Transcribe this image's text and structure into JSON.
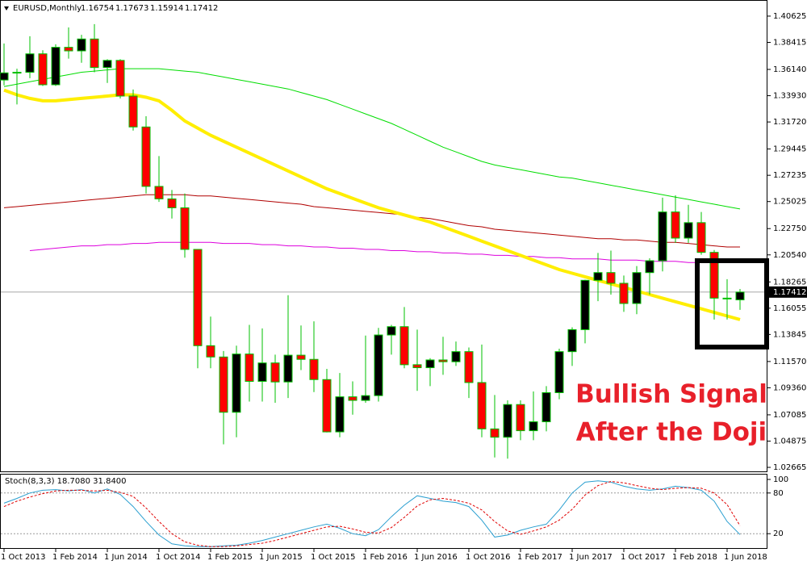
{
  "chart_data": [
    {
      "type": "candlestick",
      "title": "EURUSD,Monthly",
      "ohlc": [
        1.16754,
        1.17673,
        1.15914,
        1.17412
      ],
      "categories": [
        "1 Oct 2013",
        null,
        null,
        null,
        "1 Feb 2014",
        null,
        null,
        null,
        "1 Jun 2014",
        null,
        null,
        null,
        "1 Oct 2014",
        null,
        null,
        null,
        "1 Feb 2015",
        null,
        null,
        null,
        "1 Jun 2015",
        null,
        null,
        null,
        "1 Oct 2015",
        null,
        null,
        null,
        "1 Feb 2016",
        null,
        null,
        null,
        "1 Jun 2016",
        null,
        null,
        null,
        "1 Oct 2016",
        null,
        null,
        null,
        "1 Feb 2017",
        null,
        null,
        null,
        "1 Jun 2017",
        null,
        null,
        null,
        "1 Oct 2017",
        null,
        null,
        null,
        "1 Feb 2018",
        null,
        null,
        null,
        "1 Jun 2018",
        null
      ],
      "open": [
        1.3525,
        1.3585,
        1.359,
        1.3745,
        1.3485,
        1.38,
        1.377,
        1.387,
        1.363,
        1.369,
        1.339,
        1.313,
        1.263,
        1.2525,
        1.245,
        1.21,
        1.129,
        1.1195,
        1.073,
        1.122,
        1.099,
        1.1145,
        1.0985,
        1.121,
        1.1175,
        1.1005,
        1.0565,
        1.086,
        1.083,
        1.087,
        1.138,
        1.145,
        1.113,
        1.1105,
        1.117,
        1.1155,
        1.124,
        1.098,
        1.059,
        1.052,
        1.0795,
        1.0575,
        1.065,
        1.0895,
        1.124,
        1.1425,
        1.184,
        1.1905,
        1.1815,
        1.1645,
        1.1905,
        1.2005,
        1.2415,
        1.2195,
        1.2325,
        1.2075,
        1.169,
        1.16754
      ],
      "high": [
        1.3832,
        1.362,
        1.3893,
        1.3775,
        1.3825,
        1.3967,
        1.3905,
        1.3995,
        1.37,
        1.37,
        1.3445,
        1.322,
        1.2885,
        1.26,
        1.257,
        1.21,
        1.1535,
        1.1245,
        1.129,
        1.1465,
        1.1435,
        1.1215,
        1.1715,
        1.146,
        1.1495,
        1.1095,
        1.106,
        1.099,
        1.1375,
        1.144,
        1.1465,
        1.1615,
        1.1425,
        1.1185,
        1.1365,
        1.1325,
        1.1275,
        1.13,
        1.0875,
        1.083,
        1.083,
        1.0905,
        1.095,
        1.1265,
        1.1445,
        1.1845,
        1.207,
        1.209,
        1.188,
        1.196,
        1.2025,
        1.2535,
        1.2555,
        1.2475,
        1.2415,
        1.2095,
        1.185,
        1.17673
      ],
      "low": [
        1.348,
        1.332,
        1.354,
        1.3475,
        1.3475,
        1.3705,
        1.367,
        1.359,
        1.35,
        1.337,
        1.31,
        1.257,
        1.25,
        1.236,
        1.203,
        1.11,
        1.11,
        1.046,
        1.052,
        1.082,
        1.082,
        1.081,
        1.085,
        1.1085,
        1.09,
        1.056,
        1.052,
        1.071,
        1.081,
        1.082,
        1.1215,
        1.11,
        1.091,
        1.095,
        1.1045,
        1.112,
        1.085,
        1.052,
        1.035,
        1.034,
        1.0495,
        1.0495,
        1.057,
        1.084,
        1.112,
        1.131,
        1.1665,
        1.172,
        1.1575,
        1.1555,
        1.172,
        1.1915,
        1.2155,
        1.2155,
        1.2055,
        1.151,
        1.151,
        1.15914
      ],
      "close": [
        1.3585,
        1.359,
        1.3745,
        1.3485,
        1.38,
        1.377,
        1.387,
        1.363,
        1.369,
        1.339,
        1.313,
        1.263,
        1.2525,
        1.245,
        1.21,
        1.129,
        1.1195,
        1.073,
        1.122,
        1.099,
        1.1145,
        1.0985,
        1.121,
        1.1175,
        1.1005,
        1.0565,
        1.086,
        1.083,
        1.087,
        1.138,
        1.145,
        1.113,
        1.1105,
        1.117,
        1.1155,
        1.124,
        1.098,
        1.059,
        1.052,
        1.0795,
        1.0575,
        1.065,
        1.0895,
        1.124,
        1.1425,
        1.184,
        1.1905,
        1.1815,
        1.1645,
        1.1905,
        1.2005,
        1.2415,
        1.2195,
        1.2325,
        1.2075,
        1.169,
        1.1685,
        1.17412
      ],
      "up_color": "#000000",
      "down_color": "#ff0000",
      "wick_color": "#00c000",
      "ylim": [
        1.0226,
        1.4198
      ],
      "yticks": [
        1.40625,
        1.38415,
        {
          "value": 1.3614,
          "label": "1.36140"
        },
        {
          "value": 1.3393,
          "label": "1.33930"
        },
        {
          "value": 1.3172,
          "label": "1.31720"
        },
        1.29445,
        1.27235,
        1.25025,
        {
          "value": 1.2275,
          "label": "1.22750"
        },
        {
          "value": 1.2054,
          "label": "1.20540"
        },
        1.18265,
        1.16055,
        1.13845,
        {
          "value": 1.1157,
          "label": "1.11570"
        },
        {
          "value": 1.0936,
          "label": "1.09360"
        },
        1.07085,
        1.04875,
        1.02665
      ],
      "overlays": [
        {
          "color": "#00dd00",
          "values": [
            1.347,
            1.349,
            1.351,
            1.353,
            1.355,
            1.357,
            1.359,
            1.36,
            1.361,
            1.362,
            1.362,
            1.362,
            1.362,
            1.361,
            1.36,
            1.359,
            1.357,
            1.355,
            1.353,
            1.351,
            1.349,
            1.347,
            1.345,
            1.342,
            1.339,
            1.336,
            1.332,
            1.328,
            1.324,
            1.32,
            1.316,
            1.311,
            1.306,
            1.301,
            1.296,
            1.292,
            1.288,
            1.284,
            1.281,
            1.279,
            1.277,
            1.275,
            1.273,
            1.271,
            1.27,
            1.268,
            1.266,
            1.264,
            1.262,
            1.26,
            1.258,
            1.256,
            1.254,
            1.252,
            1.25,
            1.248,
            1.246,
            1.244
          ]
        },
        {
          "color": "#b00000",
          "values": [
            1.245,
            1.246,
            1.247,
            1.248,
            1.249,
            1.25,
            1.251,
            1.252,
            1.253,
            1.254,
            1.255,
            1.256,
            1.256,
            1.256,
            1.256,
            1.255,
            1.255,
            1.254,
            1.253,
            1.252,
            1.251,
            1.25,
            1.249,
            1.248,
            1.246,
            1.245,
            1.244,
            1.243,
            1.242,
            1.241,
            1.24,
            1.239,
            1.237,
            1.236,
            1.234,
            1.232,
            1.23,
            1.229,
            1.227,
            1.226,
            1.225,
            1.224,
            1.223,
            1.222,
            1.221,
            1.22,
            1.219,
            1.219,
            1.218,
            1.218,
            1.217,
            1.216,
            1.216,
            1.215,
            1.214,
            1.213,
            1.212,
            1.212
          ]
        },
        {
          "color": "#dd00dd",
          "values": [
            null,
            null,
            1.209,
            1.21,
            1.211,
            1.212,
            1.213,
            1.213,
            1.214,
            1.214,
            1.215,
            1.215,
            1.216,
            1.216,
            1.216,
            1.216,
            1.216,
            1.215,
            1.215,
            1.215,
            1.214,
            1.214,
            1.213,
            1.213,
            1.212,
            1.212,
            1.211,
            1.211,
            1.21,
            1.21,
            1.209,
            1.209,
            1.208,
            1.208,
            1.207,
            1.207,
            1.206,
            1.206,
            1.205,
            1.205,
            1.204,
            1.204,
            1.203,
            1.203,
            1.202,
            1.202,
            1.202,
            1.201,
            1.201,
            1.201,
            1.2,
            1.2,
            1.2,
            1.199,
            1.199,
            null,
            null,
            null
          ]
        },
        {
          "color": "#ffee00",
          "bold": true,
          "values": [
            1.344,
            1.34,
            1.337,
            1.335,
            1.335,
            1.336,
            1.337,
            1.338,
            1.339,
            1.34,
            1.34,
            1.338,
            1.335,
            1.327,
            1.318,
            1.312,
            1.306,
            1.301,
            1.296,
            1.291,
            1.286,
            1.281,
            1.276,
            1.271,
            1.266,
            1.261,
            1.257,
            1.253,
            1.249,
            1.245,
            1.242,
            1.239,
            1.236,
            1.233,
            1.229,
            1.225,
            1.221,
            1.217,
            1.213,
            1.209,
            1.205,
            1.201,
            1.197,
            1.193,
            1.19,
            1.187,
            1.184,
            1.181,
            1.178,
            1.175,
            1.172,
            1.169,
            1.166,
            1.163,
            1.16,
            1.157,
            1.154,
            1.151
          ]
        }
      ],
      "annotation": [
        "Bullish Signal",
        "After the Doji"
      ]
    },
    {
      "type": "line",
      "title": "Stoch(8,3,3) 18.7080 31.8400",
      "ylim": [
        0,
        100
      ],
      "yticks": [
        100,
        80,
        20
      ],
      "series": [
        {
          "color": "#2a9fd0",
          "values": [
            65,
            72,
            80,
            84,
            85,
            83,
            85,
            80,
            86,
            78,
            60,
            38,
            18,
            5,
            2,
            1,
            1,
            2,
            3,
            6,
            10,
            15,
            20,
            25,
            30,
            34,
            28,
            20,
            17,
            26,
            45,
            62,
            76,
            72,
            68,
            66,
            60,
            40,
            15,
            18,
            25,
            30,
            34,
            55,
            80,
            96,
            98,
            96,
            90,
            86,
            84,
            86,
            90,
            88,
            84,
            68,
            38,
            18.708
          ]
        },
        {
          "color": "#e00000",
          "dash": true,
          "values": [
            60,
            68,
            74,
            79,
            83,
            84,
            84,
            83,
            84,
            81,
            75,
            58,
            38,
            20,
            8,
            3,
            1,
            1,
            2,
            4,
            6,
            10,
            15,
            20,
            25,
            30,
            31,
            27,
            22,
            21,
            29,
            44,
            61,
            70,
            72,
            69,
            65,
            55,
            38,
            24,
            19,
            24,
            30,
            40,
            56,
            77,
            91,
            97,
            95,
            91,
            87,
            85,
            87,
            88,
            87,
            80,
            63,
            31.84
          ]
        }
      ]
    }
  ]
}
